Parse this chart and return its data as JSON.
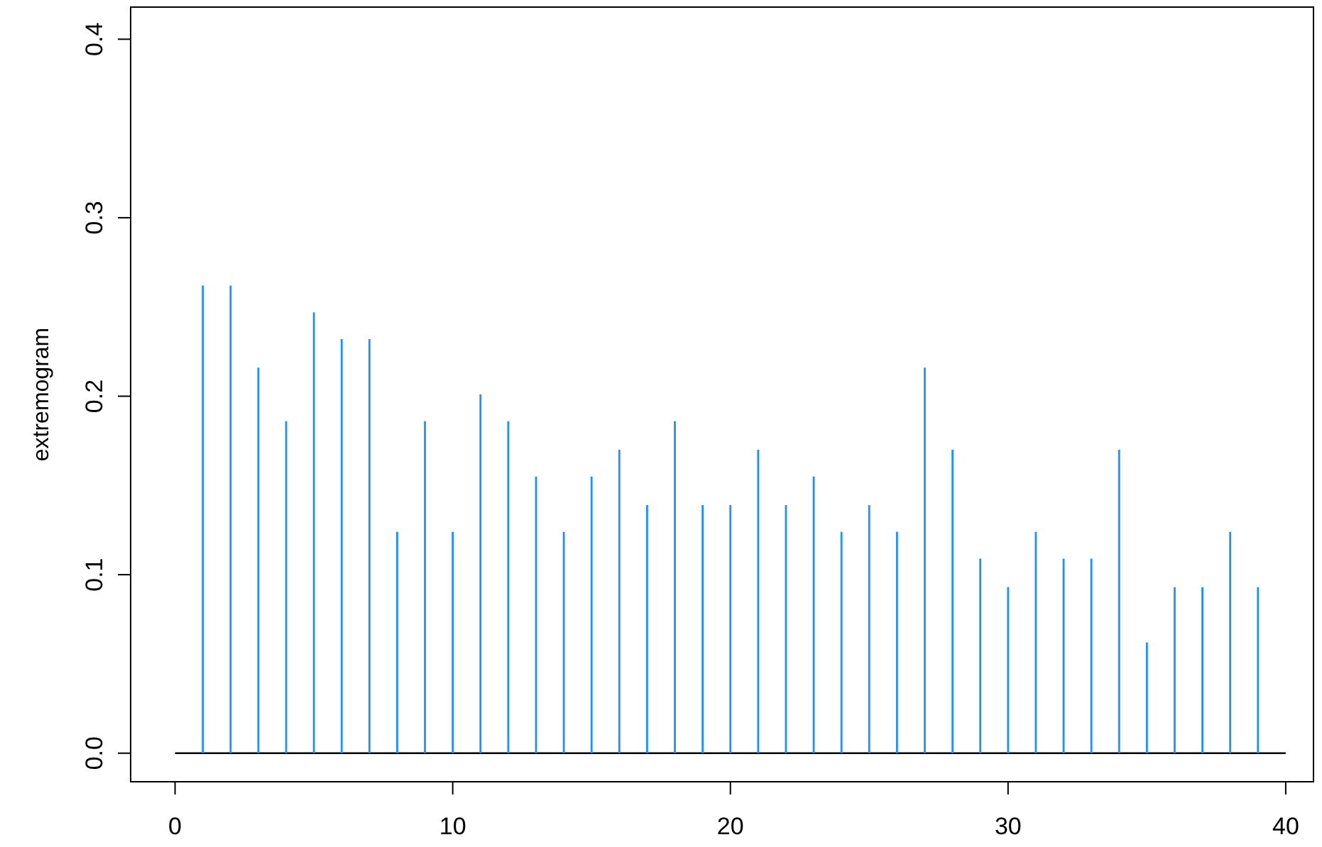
{
  "chart_data": {
    "type": "bar",
    "ylabel": "extremogram",
    "x": [
      1,
      2,
      3,
      4,
      5,
      6,
      7,
      8,
      9,
      10,
      11,
      12,
      13,
      14,
      15,
      16,
      17,
      18,
      19,
      20,
      21,
      22,
      23,
      24,
      25,
      26,
      27,
      28,
      29,
      30,
      31,
      32,
      33,
      34,
      35,
      36,
      37,
      38,
      39
    ],
    "values": [
      0.262,
      0.262,
      0.216,
      0.186,
      0.247,
      0.232,
      0.232,
      0.124,
      0.186,
      0.124,
      0.201,
      0.186,
      0.155,
      0.124,
      0.155,
      0.17,
      0.139,
      0.186,
      0.139,
      0.139,
      0.17,
      0.139,
      0.155,
      0.124,
      0.139,
      0.124,
      0.216,
      0.17,
      0.109,
      0.093,
      0.124,
      0.109,
      0.109,
      0.17,
      0.062,
      0.093,
      0.093,
      0.124,
      0.093
    ],
    "color": "#1e90ff",
    "xlim": [
      -1.6,
      41
    ],
    "ylim": [
      -0.016,
      0.418
    ],
    "xticks": [
      0,
      10,
      20,
      30,
      40
    ],
    "yticks": [
      {
        "value": 0,
        "label": "0.0"
      },
      {
        "value": 0.1,
        "label": "0.1"
      },
      {
        "value": 0.2,
        "label": "0.2"
      },
      {
        "value": 0.3,
        "label": "0.3"
      },
      {
        "value": 0.4,
        "label": "0.4"
      }
    ],
    "ref_lines": [
      {
        "axis": "y",
        "value": 0,
        "color": "#000000"
      }
    ]
  }
}
